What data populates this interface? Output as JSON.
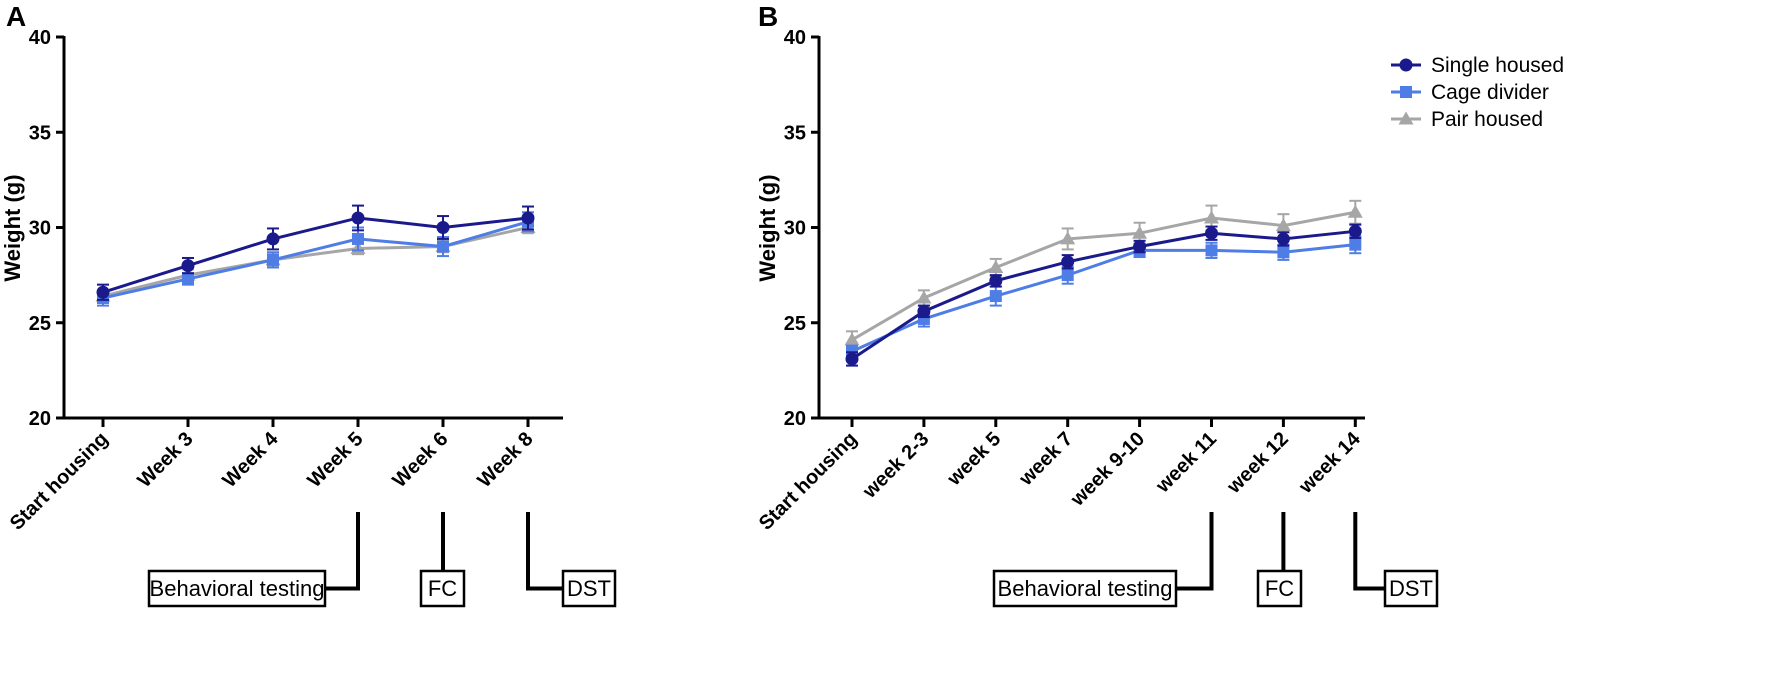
{
  "chart_data": [
    {
      "panel": "A",
      "type": "line",
      "ylabel": "Weight (g)",
      "ylim": [
        20,
        40
      ],
      "yticks": [
        "20",
        "25",
        "30",
        "35",
        "40"
      ],
      "categories": [
        "Start housing",
        "Week 3",
        "Week 4",
        "Week 5",
        "Week 6",
        "Week 8"
      ],
      "series": [
        {
          "name": "Single housed",
          "color": "#1a1a8c",
          "marker": "circle",
          "values": [
            26.6,
            28.0,
            29.4,
            30.5,
            30.0,
            30.5
          ],
          "errors": [
            0.4,
            0.4,
            0.55,
            0.65,
            0.6,
            0.6
          ]
        },
        {
          "name": "Cage divider",
          "color": "#4f7de6",
          "marker": "square",
          "values": [
            26.3,
            27.3,
            28.3,
            29.4,
            29.0,
            30.3
          ],
          "errors": [
            0.4,
            0.3,
            0.4,
            0.6,
            0.5,
            0.5
          ]
        },
        {
          "name": "Pair housed",
          "color": "#a6a6a6",
          "marker": "triangle",
          "values": [
            26.4,
            27.5,
            28.3,
            28.9,
            29.0,
            30.0
          ],
          "errors": [
            0.3,
            0.3,
            0.3,
            0.3,
            0.3,
            0.3
          ]
        }
      ],
      "annotations": [
        {
          "label": "Behavioral testing",
          "category": "Week 5"
        },
        {
          "label": "FC",
          "category": "Week 6"
        },
        {
          "label": "DST",
          "category": "Week 8"
        }
      ]
    },
    {
      "panel": "B",
      "type": "line",
      "ylabel": "Weight (g)",
      "ylim": [
        20,
        40
      ],
      "yticks": [
        "20",
        "25",
        "30",
        "35",
        "40"
      ],
      "categories": [
        "Start housing",
        "week 2-3",
        "week 5",
        "week 7",
        "week 9-10",
        "week 11",
        "week 12",
        "week 14"
      ],
      "series": [
        {
          "name": "Single housed",
          "color": "#1a1a8c",
          "marker": "circle",
          "values": [
            23.1,
            25.6,
            27.2,
            28.2,
            29.0,
            29.7,
            29.4,
            29.8
          ],
          "errors": [
            0.35,
            0.3,
            0.3,
            0.35,
            0.3,
            0.35,
            0.35,
            0.35
          ]
        },
        {
          "name": "Cage divider",
          "color": "#4f7de6",
          "marker": "square",
          "values": [
            23.5,
            25.2,
            26.4,
            27.5,
            28.8,
            28.8,
            28.7,
            29.1
          ],
          "errors": [
            0.3,
            0.4,
            0.5,
            0.45,
            0.35,
            0.4,
            0.4,
            0.45
          ]
        },
        {
          "name": "Pair housed",
          "color": "#a6a6a6",
          "marker": "triangle",
          "values": [
            24.1,
            26.3,
            27.9,
            29.4,
            29.7,
            30.5,
            30.1,
            30.8
          ],
          "errors": [
            0.45,
            0.4,
            0.45,
            0.55,
            0.55,
            0.65,
            0.6,
            0.6
          ]
        }
      ],
      "legend": {
        "placement": "top-right",
        "entries": [
          "Single housed",
          "Cage divider",
          "Pair housed"
        ]
      },
      "annotations": [
        {
          "label": "Behavioral testing",
          "category": "week 11"
        },
        {
          "label": "FC",
          "category": "week 12"
        },
        {
          "label": "DST",
          "category": "week 14"
        }
      ]
    }
  ]
}
